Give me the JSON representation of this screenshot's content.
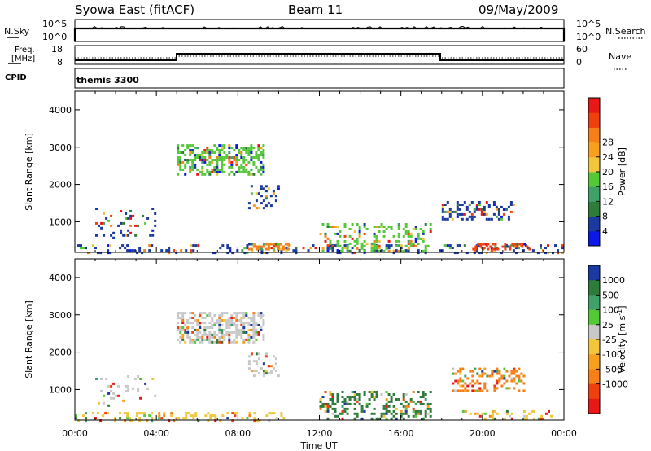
{
  "header": {
    "station": "Syowa East (fitACF)",
    "beam": "Beam 11",
    "date": "09/May/2009"
  },
  "nsky_panel": {
    "left_label": "N.Sky",
    "right_label": "N.Search",
    "left_ticks": [
      "10^5",
      "10^0"
    ],
    "right_ticks": [
      "10^5",
      "10^0"
    ]
  },
  "freq_panel": {
    "left_label_1": "Freq.",
    "left_label_2": "[MHz]",
    "right_label": "Nave",
    "left_ticks": [
      "18",
      "8"
    ],
    "right_ticks": [
      "60",
      "0"
    ],
    "cpid_label": "CPID",
    "cpid_value": "themis 3300"
  },
  "time_axis": {
    "label": "Time UT",
    "ticks": [
      "00:00",
      "04:00",
      "08:00",
      "12:00",
      "16:00",
      "20:00",
      "00:00"
    ]
  },
  "chart_data": [
    {
      "type": "heatmap",
      "name": "power",
      "ylabel": "Slant Range [km]",
      "ylim": [
        180,
        4500
      ],
      "xlim_hours": [
        0,
        24
      ],
      "y_ticks": [
        1000,
        2000,
        3000,
        4000
      ],
      "colorbar_label": "Power [dB]",
      "colorbar_ticks": [
        "4",
        "8",
        "12",
        "16",
        "20",
        "24",
        "28"
      ],
      "colorbar_colors": [
        "#0a18e8",
        "#1b3aa0",
        "#2f7b3c",
        "#3fa06a",
        "#55c83a",
        "#f0c63c",
        "#f7a020",
        "#f58019",
        "#f04010",
        "#e81818"
      ],
      "regions": [
        {
          "t0": 5.0,
          "t1": 9.2,
          "r0": 2300,
          "r1": 3100,
          "dominant": "#55c83a",
          "density": 0.55
        },
        {
          "t0": 0.0,
          "t1": 24.0,
          "r0": 200,
          "r1": 450,
          "dominant": "#1b3aa0",
          "density": 0.25
        },
        {
          "t0": 8.5,
          "t1": 10.5,
          "r0": 300,
          "r1": 450,
          "dominant": "#f58019",
          "density": 0.8
        },
        {
          "t0": 12.0,
          "t1": 17.5,
          "r0": 250,
          "r1": 1000,
          "dominant": "#55c83a",
          "density": 0.3
        },
        {
          "t0": 18.0,
          "t1": 21.5,
          "r0": 1100,
          "r1": 1600,
          "dominant": "#1b3aa0",
          "density": 0.35
        },
        {
          "t0": 1.0,
          "t1": 4.0,
          "r0": 600,
          "r1": 1400,
          "dominant": "#1b3aa0",
          "density": 0.12
        },
        {
          "t0": 8.5,
          "t1": 10.0,
          "r0": 1400,
          "r1": 2000,
          "dominant": "#1b3aa0",
          "density": 0.25
        },
        {
          "t0": 19.5,
          "t1": 22.5,
          "r0": 300,
          "r1": 450,
          "dominant": "#f04010",
          "density": 0.45
        }
      ]
    },
    {
      "type": "heatmap",
      "name": "velocity",
      "ylabel": "Slant Range [km]",
      "ylim": [
        180,
        4500
      ],
      "xlim_hours": [
        0,
        24
      ],
      "y_ticks": [
        1000,
        2000,
        3000,
        4000
      ],
      "colorbar_label": "Velocity [m s-1]",
      "colorbar_ticks": [
        "1000",
        "500",
        "100",
        "25",
        "-25",
        "-100",
        "-500",
        "-1000"
      ],
      "colorbar_colors": [
        "#1b3aa0",
        "#2f7b3c",
        "#3fa06a",
        "#55c83a",
        "#c8c8c8",
        "#f0c63c",
        "#f7a020",
        "#f58019",
        "#f04010",
        "#e81818"
      ],
      "regions": [
        {
          "t0": 5.0,
          "t1": 9.2,
          "r0": 2300,
          "r1": 3100,
          "dominant": "#c8c8c8",
          "density": 0.55
        },
        {
          "t0": 0.0,
          "t1": 10.5,
          "r0": 200,
          "r1": 450,
          "dominant": "#f0c63c",
          "density": 0.3
        },
        {
          "t0": 12.0,
          "t1": 17.5,
          "r0": 250,
          "r1": 1000,
          "dominant": "#2f7b3c",
          "density": 0.35
        },
        {
          "t0": 18.5,
          "t1": 22.0,
          "r0": 1000,
          "r1": 1600,
          "dominant": "#f58019",
          "density": 0.35
        },
        {
          "t0": 8.5,
          "t1": 10.0,
          "r0": 1400,
          "r1": 2000,
          "dominant": "#c8c8c8",
          "density": 0.25
        },
        {
          "t0": 1.0,
          "t1": 4.0,
          "r0": 600,
          "r1": 1400,
          "dominant": "#c8c8c8",
          "density": 0.12
        },
        {
          "t0": 19.0,
          "t1": 23.5,
          "r0": 250,
          "r1": 450,
          "dominant": "#f0c63c",
          "density": 0.3
        }
      ]
    }
  ]
}
